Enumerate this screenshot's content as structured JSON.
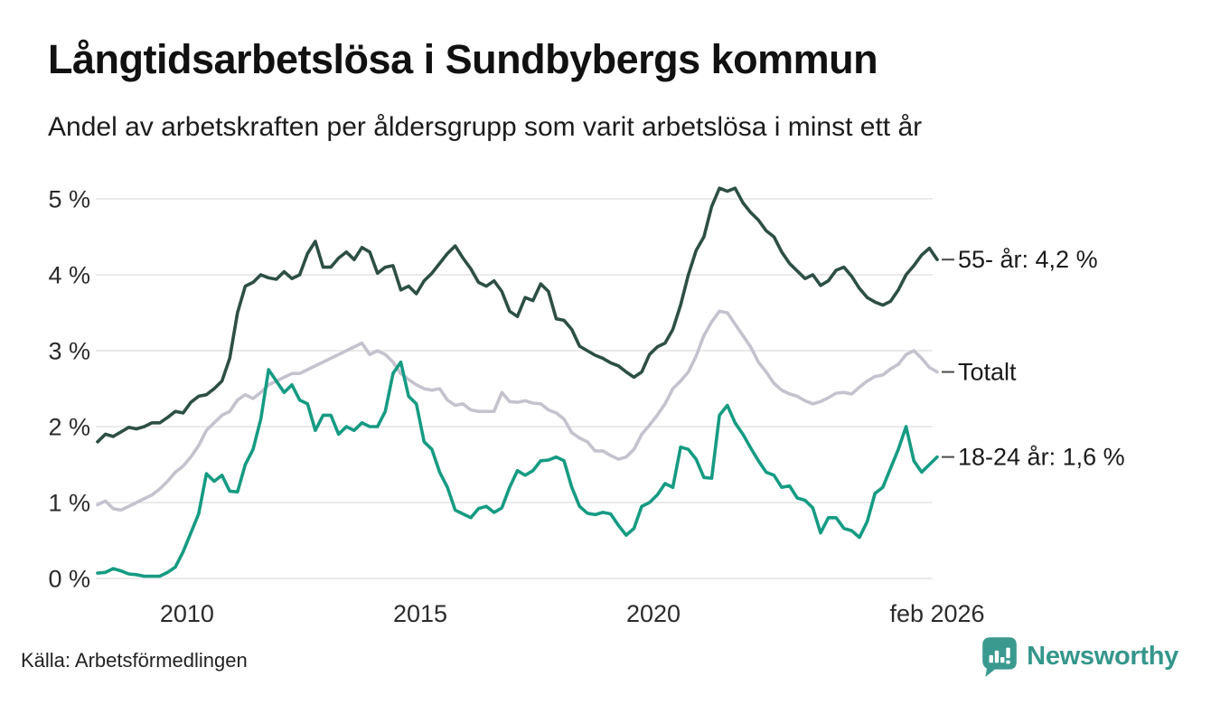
{
  "header": {
    "title": "Långtidsarbetslösa i Sundbybergs kommun",
    "subtitle": "Andel av arbetskraften per åldersgrupp som varit arbetslösa i minst ett år"
  },
  "footer": {
    "source": "Källa: Arbetsförmedlingen",
    "brand": "Newsworthy",
    "brand_color": "#35968b",
    "brand_icon_color": "#3b9a90"
  },
  "chart_data": {
    "type": "line",
    "title": "Långtidsarbetslösa i Sundbybergs kommun",
    "subtitle": "Andel av arbetskraften per åldersgrupp som varit arbetslösa i minst ett år",
    "unit": "% av arbetskraften",
    "x_start": "2008-02",
    "x_end": "2026-02",
    "step_months": 2,
    "total_months": 216,
    "grid": "horizontal",
    "gridline_color": "#e3e3e3",
    "axis_text_color": "#2b2b2b",
    "label_text_color": "#1a1a1a",
    "dash_color": "#4a4a4a",
    "ylim": [
      0,
      5.3
    ],
    "x_ticks": [
      {
        "month": 23,
        "label": "2010"
      },
      {
        "month": 83,
        "label": "2015"
      },
      {
        "month": 143,
        "label": "2020"
      },
      {
        "month": 216,
        "label": "feb 2026"
      }
    ],
    "y_ticks": [
      {
        "value": 0,
        "label": "0 %"
      },
      {
        "value": 1,
        "label": "1 %"
      },
      {
        "value": 2,
        "label": "2 %"
      },
      {
        "value": 3,
        "label": "3 %"
      },
      {
        "value": 4,
        "label": "4 %"
      },
      {
        "value": 5,
        "label": "5 %"
      }
    ],
    "series": [
      {
        "name": "Totalt",
        "end_label": "Totalt",
        "color": "#c5c2ce",
        "values": [
          0.97,
          1.02,
          0.92,
          0.9,
          0.95,
          1.0,
          1.05,
          1.1,
          1.18,
          1.28,
          1.4,
          1.48,
          1.6,
          1.75,
          1.95,
          2.05,
          2.15,
          2.2,
          2.35,
          2.42,
          2.37,
          2.45,
          2.55,
          2.6,
          2.65,
          2.7,
          2.7,
          2.75,
          2.8,
          2.85,
          2.9,
          2.95,
          3.0,
          3.05,
          3.1,
          2.95,
          3.0,
          2.95,
          2.85,
          2.7,
          2.62,
          2.55,
          2.5,
          2.48,
          2.5,
          2.35,
          2.28,
          2.3,
          2.22,
          2.2,
          2.2,
          2.2,
          2.45,
          2.33,
          2.32,
          2.34,
          2.31,
          2.3,
          2.22,
          2.18,
          2.1,
          1.92,
          1.85,
          1.8,
          1.68,
          1.68,
          1.62,
          1.57,
          1.6,
          1.7,
          1.9,
          2.02,
          2.15,
          2.3,
          2.5,
          2.6,
          2.72,
          2.93,
          3.2,
          3.38,
          3.52,
          3.5,
          3.35,
          3.2,
          3.05,
          2.85,
          2.72,
          2.57,
          2.48,
          2.43,
          2.4,
          2.34,
          2.3,
          2.33,
          2.38,
          2.44,
          2.45,
          2.43,
          2.52,
          2.6,
          2.66,
          2.68,
          2.76,
          2.82,
          2.95,
          3.0,
          2.9,
          2.78,
          2.72
        ]
      },
      {
        "name": "55- år",
        "end_label": "55- år: 4,2 %",
        "color": "#2d4f45",
        "values": [
          1.8,
          1.9,
          1.87,
          1.93,
          1.99,
          1.97,
          2.0,
          2.05,
          2.05,
          2.12,
          2.2,
          2.18,
          2.32,
          2.4,
          2.42,
          2.5,
          2.6,
          2.9,
          3.5,
          3.85,
          3.9,
          4.0,
          3.96,
          3.94,
          4.04,
          3.95,
          4.0,
          4.28,
          4.44,
          4.1,
          4.1,
          4.22,
          4.3,
          4.2,
          4.36,
          4.3,
          4.02,
          4.1,
          4.12,
          3.8,
          3.85,
          3.75,
          3.92,
          4.02,
          4.15,
          4.28,
          4.38,
          4.22,
          4.08,
          3.9,
          3.85,
          3.92,
          3.78,
          3.52,
          3.45,
          3.7,
          3.66,
          3.88,
          3.78,
          3.42,
          3.4,
          3.28,
          3.06,
          3.0,
          2.94,
          2.9,
          2.84,
          2.8,
          2.72,
          2.65,
          2.72,
          2.95,
          3.05,
          3.1,
          3.28,
          3.6,
          4.0,
          4.32,
          4.5,
          4.9,
          5.14,
          5.1,
          5.14,
          4.95,
          4.82,
          4.72,
          4.58,
          4.5,
          4.3,
          4.15,
          4.05,
          3.95,
          4.0,
          3.86,
          3.92,
          4.06,
          4.1,
          3.98,
          3.82,
          3.7,
          3.64,
          3.6,
          3.65,
          3.8,
          4.0,
          4.12,
          4.26,
          4.35,
          4.2
        ]
      },
      {
        "name": "18-24 år",
        "end_label": "18-24 år: 1,6 %",
        "color": "#169b83",
        "values": [
          0.07,
          0.08,
          0.13,
          0.1,
          0.06,
          0.05,
          0.03,
          0.03,
          0.03,
          0.08,
          0.15,
          0.35,
          0.6,
          0.85,
          1.38,
          1.28,
          1.36,
          1.15,
          1.14,
          1.5,
          1.7,
          2.1,
          2.75,
          2.6,
          2.45,
          2.55,
          2.35,
          2.3,
          1.95,
          2.15,
          2.15,
          1.9,
          2.0,
          1.95,
          2.05,
          2.0,
          2.0,
          2.2,
          2.7,
          2.85,
          2.4,
          2.3,
          1.8,
          1.7,
          1.4,
          1.2,
          0.9,
          0.85,
          0.8,
          0.92,
          0.95,
          0.87,
          0.93,
          1.2,
          1.42,
          1.36,
          1.42,
          1.55,
          1.56,
          1.6,
          1.55,
          1.2,
          0.95,
          0.86,
          0.84,
          0.87,
          0.85,
          0.7,
          0.57,
          0.66,
          0.95,
          1.0,
          1.1,
          1.25,
          1.2,
          1.73,
          1.7,
          1.57,
          1.33,
          1.32,
          2.15,
          2.28,
          2.05,
          1.9,
          1.72,
          1.55,
          1.4,
          1.36,
          1.2,
          1.22,
          1.06,
          1.03,
          0.93,
          0.6,
          0.8,
          0.8,
          0.66,
          0.63,
          0.54,
          0.75,
          1.12,
          1.2,
          1.45,
          1.7,
          2.0,
          1.55,
          1.4,
          1.5,
          1.6
        ]
      }
    ]
  }
}
